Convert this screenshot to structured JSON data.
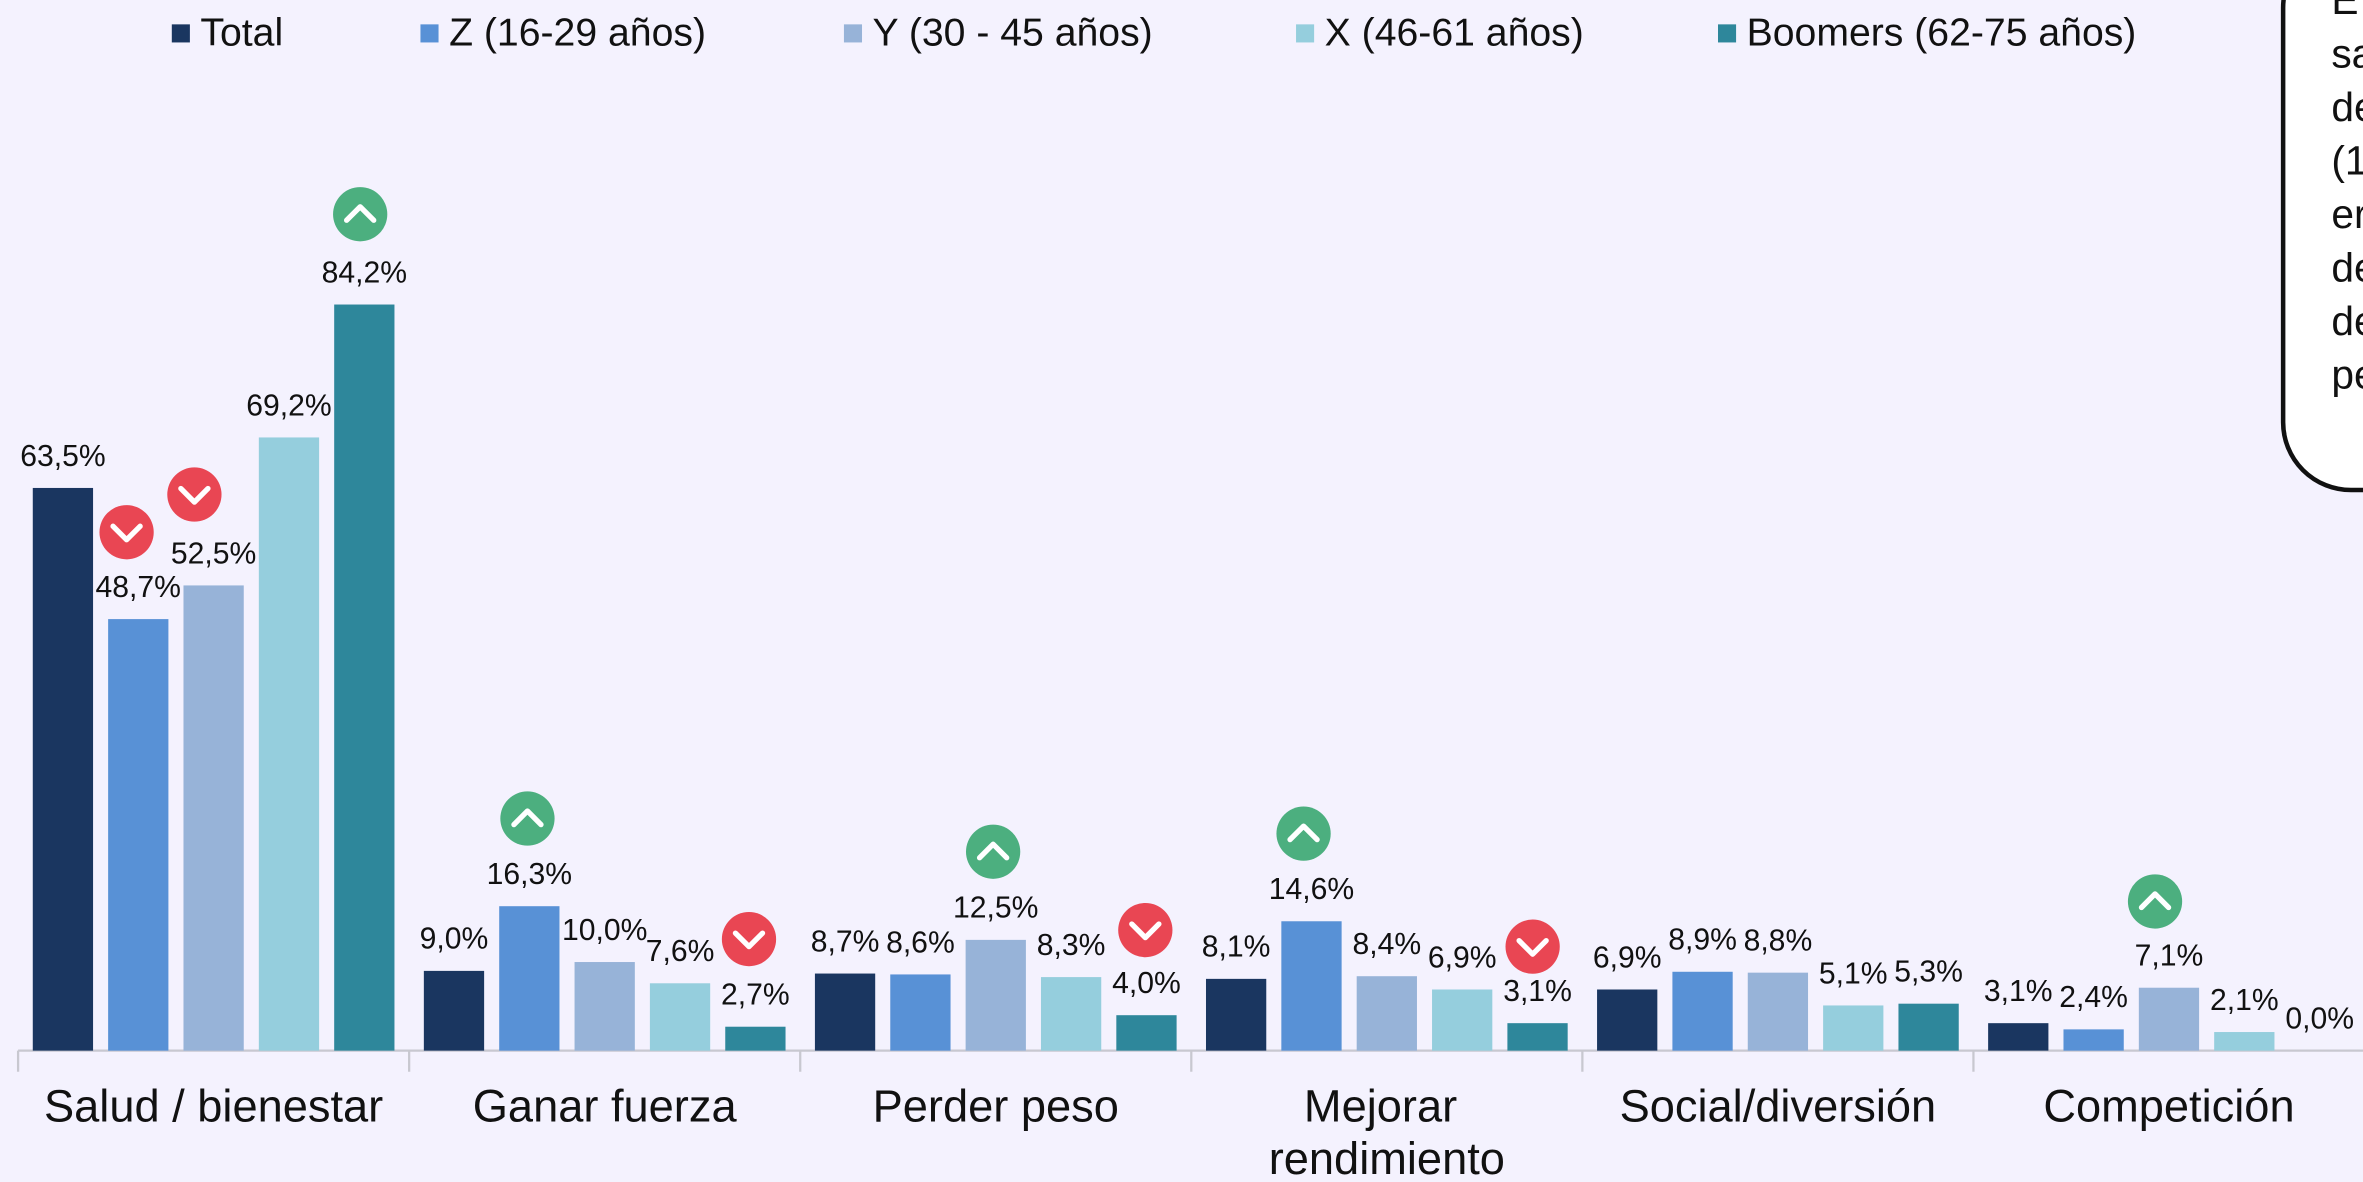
{
  "chart_data": {
    "type": "bar",
    "categories": [
      "Salud / bienestar",
      "Ganar fuerza",
      "Perder peso",
      "Mejorar rendimiento",
      "Social/diversión",
      "Competición"
    ],
    "series": [
      {
        "name": "Total",
        "color": "#1a3660",
        "values": [
          63.5,
          9.0,
          8.7,
          8.1,
          6.9,
          3.1
        ],
        "value_labels": [
          "63,5%",
          "9,0%",
          "8,7%",
          "8,1%",
          "6,9%",
          "3,1%"
        ]
      },
      {
        "name": "Z (16-29 años)",
        "color": "#5891d6",
        "values": [
          48.7,
          16.3,
          8.6,
          14.6,
          8.9,
          2.4
        ],
        "value_labels": [
          "48,7%",
          "16,3%",
          "8,6%",
          "14,6%",
          "8,9%",
          "2,4%"
        ]
      },
      {
        "name": "Y (30 - 45 años)",
        "color": "#97b3d8",
        "values": [
          52.5,
          10.0,
          12.5,
          8.4,
          8.8,
          7.1
        ],
        "value_labels": [
          "52,5%",
          "10,0%",
          "12,5%",
          "8,4%",
          "8,8%",
          "7,1%"
        ]
      },
      {
        "name": "X (46-61 años)",
        "color": "#95cedd",
        "values": [
          69.2,
          7.6,
          8.3,
          6.9,
          5.1,
          2.1
        ],
        "value_labels": [
          "69,2%",
          "7,6%",
          "8,3%",
          "6,9%",
          "5,1%",
          "2,1%"
        ]
      },
      {
        "name": "Boomers (62-75 años)",
        "color": "#2e879b",
        "values": [
          84.2,
          2.7,
          4.0,
          3.1,
          5.3,
          0.0
        ],
        "value_labels": [
          "84,2%",
          "2,7%",
          "4,0%",
          "3,1%",
          "5,3%",
          "0,0%"
        ]
      }
    ],
    "ylim": [
      0,
      100
    ],
    "legend": "top",
    "annotation_lines": [
      "E",
      "sa",
      "de",
      "(1",
      "er",
      "de",
      "de",
      "pe"
    ]
  }
}
